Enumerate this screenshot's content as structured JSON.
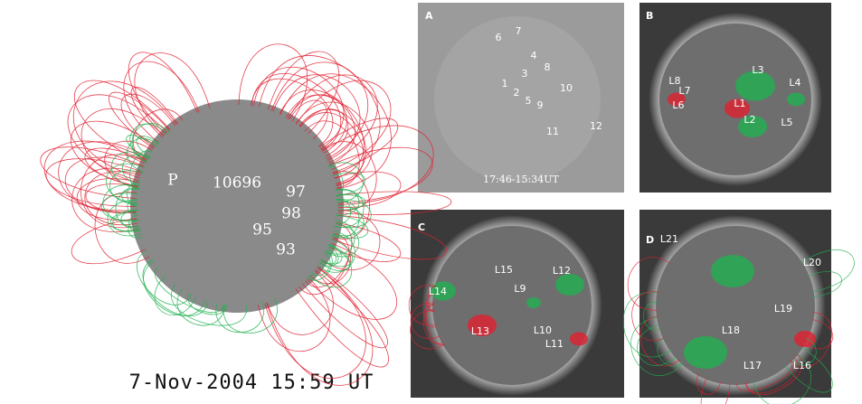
{
  "main": {
    "labels": [
      "P",
      "10696",
      "97",
      "98",
      "95",
      "93"
    ],
    "timestamp": "7-Nov-2004 15:59 UT"
  },
  "panels": [
    {
      "letter": "A",
      "labels": [
        "6",
        "7",
        "4",
        "8",
        "3",
        "1",
        "2",
        "10",
        "5",
        "9",
        "11",
        "12"
      ],
      "caption": "17:46-15:34UT"
    },
    {
      "letter": "B",
      "labels": [
        "L8",
        "L7",
        "L6",
        "L3",
        "L4",
        "L1",
        "L2",
        "L5"
      ]
    },
    {
      "letter": "C",
      "labels": [
        "L15",
        "L12",
        "L14",
        "L9",
        "L13",
        "L10",
        "L11"
      ]
    },
    {
      "letter": "D",
      "labels": [
        "L21",
        "L20",
        "L19",
        "L18",
        "L17",
        "L16"
      ]
    }
  ]
}
